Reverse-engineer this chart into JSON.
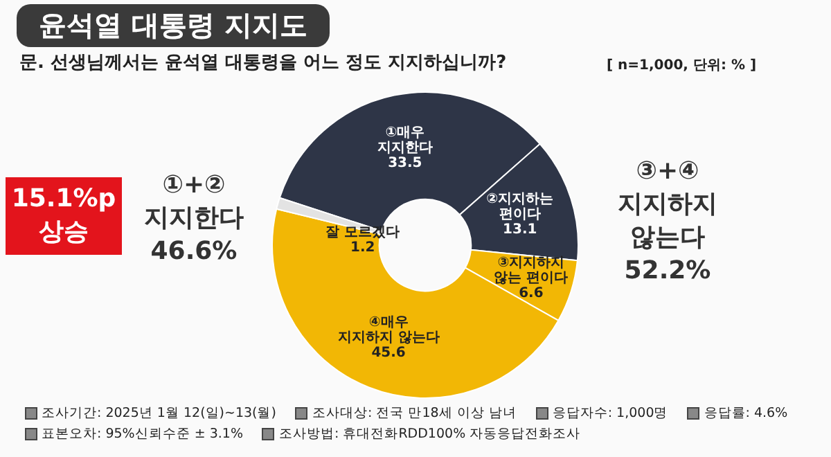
{
  "chart_data": {
    "type": "donut",
    "title": "윤석열 대통령 지지도",
    "subtitle": "문. 선생님께서는 윤석열 대통령을 어느 정도 지지하십니까?",
    "categories": [
      "①매우 지지한다",
      "②지지하는 편이다",
      "③지지하지 않는 편이다",
      "④매우 지지하지 않는다",
      "잘 모르겠다"
    ],
    "values": [
      33.5,
      13.1,
      6.6,
      45.6,
      1.2
    ],
    "colors": [
      "#2e3547",
      "#2e3547",
      "#f2b705",
      "#f2b705",
      "#e3e3e3"
    ],
    "data_labels": true,
    "annotations": [
      "[ n=1,000, 단위: % ]",
      "15.1%p 상승",
      "①+② 지지한다 46.6%",
      "③+④ 지지하지 않는다 52.2%",
      "조사기간: 2025년 1월 12(일)~13(월)",
      "조사대상: 전국 만18세 이상 남녀",
      "응답자수: 1,000명",
      "응답률: 4.6%",
      "표본오차: 95%신뢰수준 ± 3.1%",
      "조사방법: 휴대전화RDD100% 자동응답전화조사"
    ]
  }
}
